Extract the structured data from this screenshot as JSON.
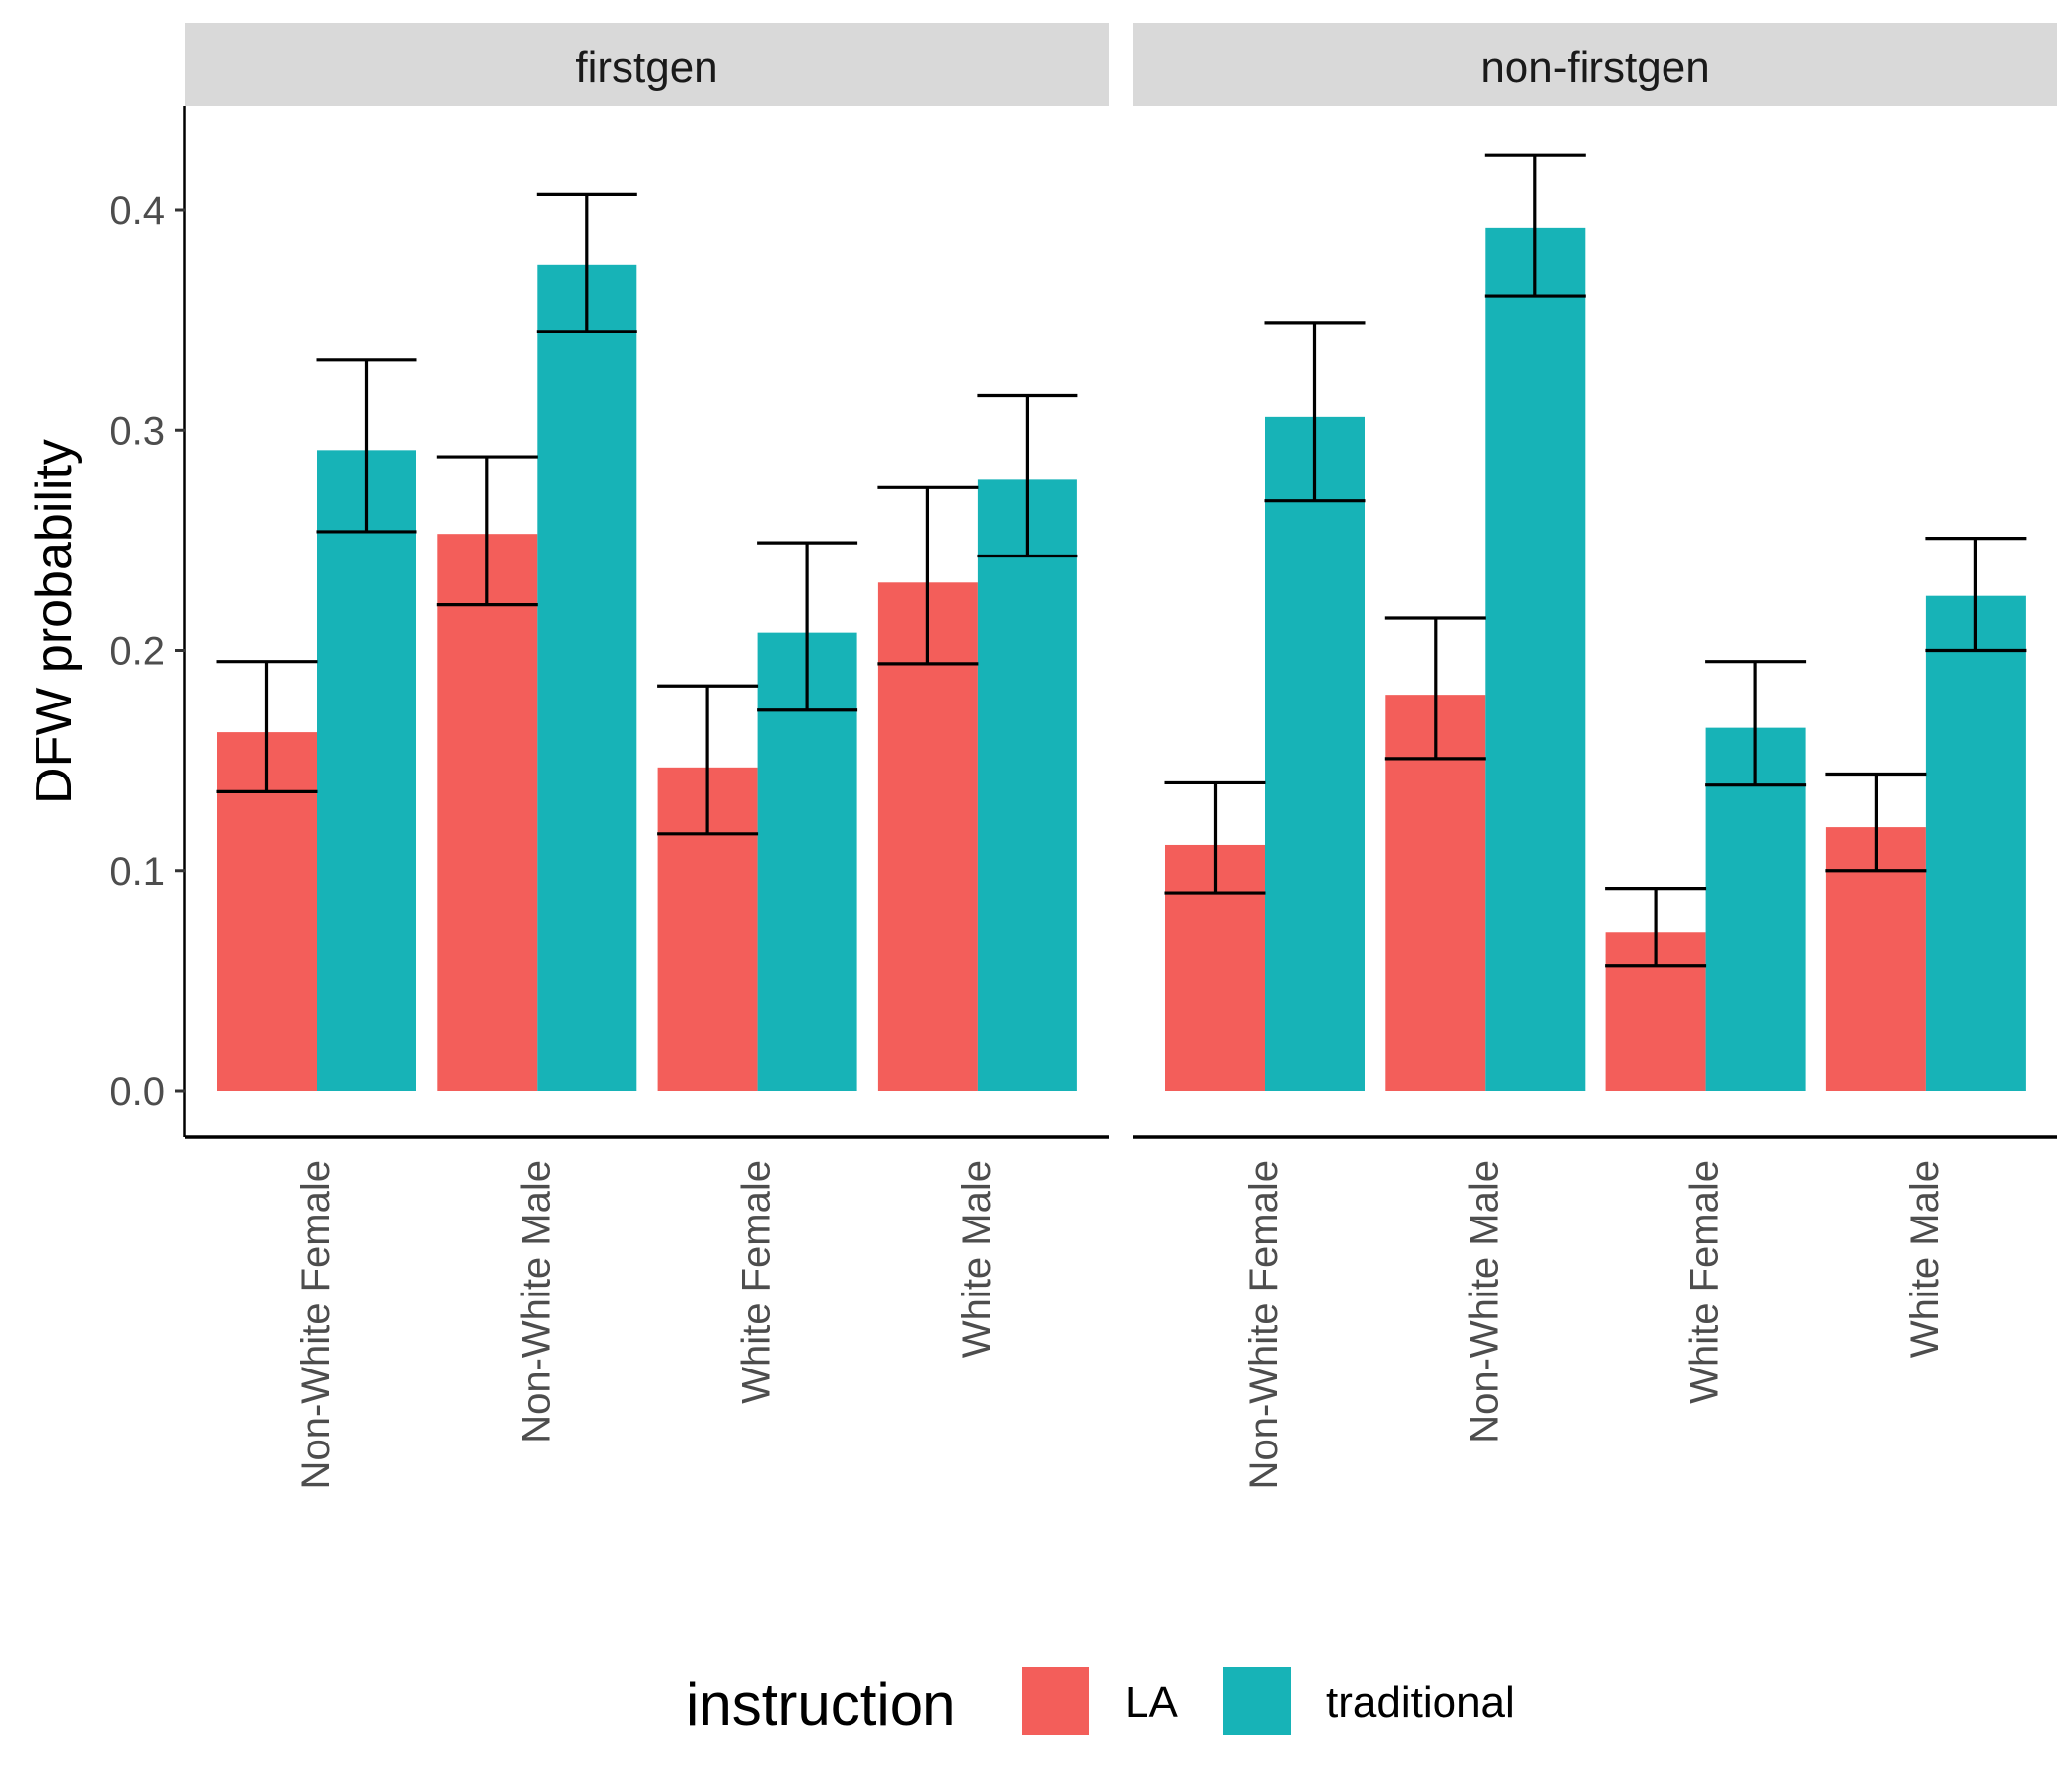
{
  "chart_data": {
    "type": "bar",
    "ylabel": "DFW probability",
    "xlabel": "",
    "ylim": [
      0,
      0.445
    ],
    "yticks": [
      0.0,
      0.1,
      0.2,
      0.3,
      0.4
    ],
    "ytick_labels": [
      "0.0",
      "0.1",
      "0.2",
      "0.3",
      "0.4"
    ],
    "grid": false,
    "legend": {
      "title": "instruction",
      "position": "bottom"
    },
    "categories": [
      "Non-White Female",
      "Non-White Male",
      "White Female",
      "White Male"
    ],
    "series_names": [
      "LA",
      "traditional"
    ],
    "colors": {
      "LA": "#F35E5A",
      "traditional": "#17B3B7"
    },
    "panels": [
      {
        "label": "firstgen",
        "series": [
          {
            "name": "LA",
            "values": [
              0.163,
              0.253,
              0.147,
              0.231
            ],
            "lower": [
              0.136,
              0.221,
              0.117,
              0.194
            ],
            "upper": [
              0.195,
              0.288,
              0.184,
              0.274
            ]
          },
          {
            "name": "traditional",
            "values": [
              0.291,
              0.375,
              0.208,
              0.278
            ],
            "lower": [
              0.254,
              0.345,
              0.173,
              0.243
            ],
            "upper": [
              0.332,
              0.407,
              0.249,
              0.316
            ]
          }
        ]
      },
      {
        "label": "non-firstgen",
        "series": [
          {
            "name": "LA",
            "values": [
              0.112,
              0.18,
              0.072,
              0.12
            ],
            "lower": [
              0.09,
              0.151,
              0.057,
              0.1
            ],
            "upper": [
              0.14,
              0.215,
              0.092,
              0.144
            ]
          },
          {
            "name": "traditional",
            "values": [
              0.306,
              0.392,
              0.165,
              0.225
            ],
            "lower": [
              0.268,
              0.361,
              0.139,
              0.2
            ],
            "upper": [
              0.349,
              0.425,
              0.195,
              0.251
            ]
          }
        ]
      }
    ]
  }
}
